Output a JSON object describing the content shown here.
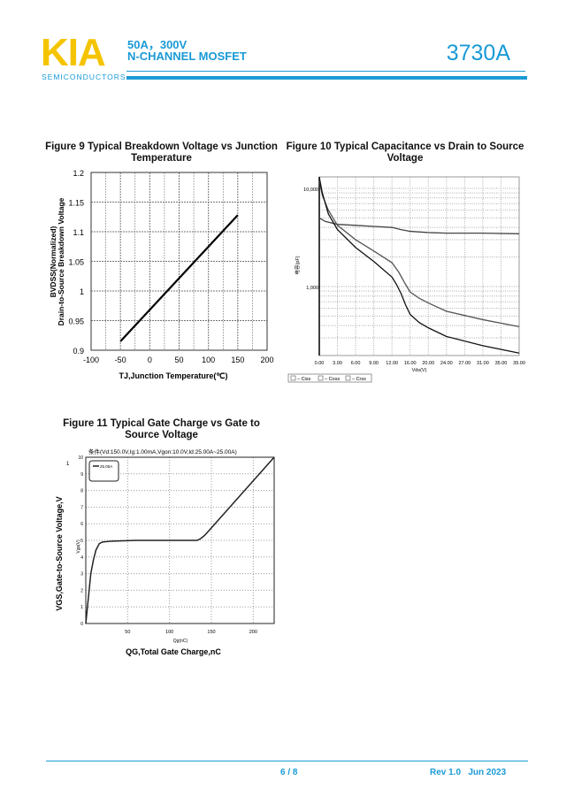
{
  "header": {
    "logo": "KIA",
    "logo_sub": "SEMICONDUCTORS",
    "spec_line1": "50A，300V",
    "spec_line2": "N-CHANNEL MOSFET",
    "part_number": "3730A"
  },
  "footer": {
    "page": "6 / 8",
    "revision": "Rev 1.0   Jun 2023"
  },
  "colors": {
    "brand_blue": "#1a9ad6",
    "logo_yellow": "#f5c400"
  },
  "chart_data": [
    {
      "type": "line",
      "title": "Figure 9 Typical Breakdown Voltage vs Junction Temperature",
      "xlabel": "TJ,Junction Temperature(℃)",
      "ylabel_line1": "BVDSS(Normalized)",
      "ylabel_line2": "Drain-to-Source Breakdown Voltage",
      "xlim": [
        -100,
        200
      ],
      "ylim": [
        0.9,
        1.2
      ],
      "grid": true,
      "xticks": [
        "-100",
        "-50",
        "0",
        "50",
        "100",
        "150",
        "200"
      ],
      "yticks": [
        "0.9",
        "0.95",
        "1",
        "1.05",
        "1.1",
        "1.15",
        "1.2"
      ],
      "series": [
        {
          "x": [
            -50,
            150
          ],
          "y": [
            0.915,
            1.128
          ]
        }
      ]
    },
    {
      "type": "line",
      "title": "Figure 10 Typical Capacitance vs Drain to Source Voltage",
      "xlabel": "Vds(V)",
      "ylabel": "电容(pF)",
      "yscale": "log",
      "grid": true,
      "legend": "bottom-left",
      "xticks": [
        "0.00",
        "3.00",
        "6.00",
        "9.00",
        "12.00",
        "16.00",
        "20.00",
        "24.00",
        "27.00",
        "31.00",
        "35.00",
        "39.00"
      ],
      "yticks": [
        "1,000",
        "10,000"
      ],
      "series": [
        {
          "name": "Ciss",
          "x": [
            0,
            1,
            3,
            6,
            9,
            12,
            14,
            16,
            20,
            24,
            31,
            39
          ],
          "y": [
            5000,
            4600,
            4300,
            4200,
            4100,
            4000,
            3800,
            3650,
            3550,
            3500,
            3500,
            3450
          ]
        },
        {
          "name": "Coss",
          "x": [
            0,
            0.5,
            1.5,
            3,
            6,
            9,
            12,
            13.5,
            15,
            16,
            18,
            20,
            24,
            31,
            39
          ],
          "y": [
            12000,
            8500,
            6000,
            4200,
            3000,
            2300,
            1750,
            1400,
            1050,
            880,
            760,
            680,
            560,
            460,
            390
          ]
        },
        {
          "name": "Crss",
          "x": [
            0,
            0.5,
            1.5,
            3,
            6,
            9,
            12,
            13,
            14,
            15,
            16,
            18,
            20,
            24,
            31,
            39
          ],
          "y": [
            13000,
            9000,
            5500,
            3800,
            2500,
            1800,
            1250,
            1050,
            850,
            650,
            520,
            430,
            380,
            310,
            250,
            210
          ]
        }
      ]
    },
    {
      "type": "line",
      "title": "Figure 11 Typical Gate Charge vs Gate to Source Voltage",
      "subtitle": "条件(Vd:150.0V,Ig:1.00mA,Vgon:10.0V,Id:25.00A~25.00A)",
      "xlabel": "QG,Total Gate Charge,nC",
      "ylabel": "VGS,Gate-to-Source Voltage,V",
      "inner_xlabel": "Qg(nC)",
      "inner_ylabel": "Vgs(V)",
      "stray_mark": "1",
      "xlim": [
        0,
        225
      ],
      "ylim": [
        0,
        10
      ],
      "grid": true,
      "legend": "top-left",
      "xticks": [
        "50",
        "100",
        "150",
        "200"
      ],
      "yticks": [
        "0",
        "1",
        "2",
        "3",
        "4",
        "5",
        "6",
        "7",
        "8",
        "9",
        "10"
      ],
      "series": [
        {
          "name": "25.00A",
          "x": [
            0,
            3,
            6,
            9,
            12,
            16,
            20,
            30,
            60,
            100,
            133,
            137,
            142,
            150,
            225
          ],
          "y": [
            0,
            1.5,
            3,
            3.8,
            4.4,
            4.8,
            4.9,
            4.95,
            5,
            5,
            5,
            5.1,
            5.3,
            5.75,
            10
          ]
        }
      ]
    }
  ]
}
